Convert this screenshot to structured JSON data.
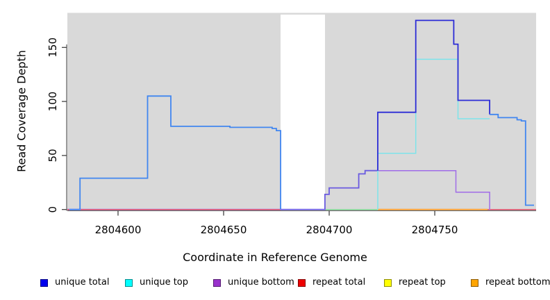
{
  "figure": {
    "xlabel": "Coordinate in Reference Genome",
    "ylabel": "Read Coverage Depth"
  },
  "chart_data": {
    "type": "line",
    "subtype": "step-coverage",
    "title": "",
    "xlabel": "Coordinate in Reference Genome",
    "ylabel": "Read Coverage Depth",
    "xlim": [
      2804576,
      2804798
    ],
    "ylim": [
      0,
      182
    ],
    "x_ticks": [
      2804600,
      2804650,
      2804700,
      2804750
    ],
    "y_ticks": [
      0,
      50,
      100,
      150
    ],
    "grid": false,
    "legend_position": "bottom",
    "background": {
      "panel_color": "#d9d9d9",
      "gap_color": "#ffffff",
      "repeat_gap_x": [
        2804677,
        2804698
      ]
    },
    "legend": [
      {
        "label": "unique total",
        "color": "#0000ee"
      },
      {
        "label": "unique top",
        "color": "#00ffff"
      },
      {
        "label": "unique bottom",
        "color": "#9932cc"
      },
      {
        "label": "repeat total",
        "color": "#ee0000"
      },
      {
        "label": "repeat top",
        "color": "#ffff00"
      },
      {
        "label": "repeat bottom",
        "color": "#ffa500"
      }
    ],
    "series": [
      {
        "name": "unique-bottom-zero-left",
        "color": "#b7a6ee",
        "width": 2.4,
        "points": [
          [
            2804576,
            0
          ],
          [
            2804677,
            0
          ]
        ]
      },
      {
        "name": "repeat-total",
        "color": "#dd4b66",
        "width": 1.5,
        "points": [
          [
            2804576,
            0
          ],
          [
            2804798,
            0
          ]
        ]
      },
      {
        "name": "top-strand-zero",
        "color": "#7fd693",
        "width": 1.5,
        "points": [
          [
            2804698,
            0
          ],
          [
            2804723,
            0
          ]
        ]
      },
      {
        "name": "repeat-bottom",
        "color": "#ff9f2e",
        "width": 1.8,
        "points": [
          [
            2804723,
            0
          ],
          [
            2804775,
            0
          ]
        ]
      },
      {
        "name": "unique-total-left",
        "color": "#4186f0",
        "width": 1.8,
        "points": [
          [
            2804577,
            0
          ],
          [
            2804582,
            0
          ],
          [
            2804582,
            29
          ],
          [
            2804614,
            29
          ],
          [
            2804614,
            105
          ],
          [
            2804625,
            105
          ],
          [
            2804625,
            77
          ],
          [
            2804653,
            77
          ],
          [
            2804653,
            76
          ],
          [
            2804673,
            76
          ],
          [
            2804673,
            75
          ],
          [
            2804675,
            75
          ],
          [
            2804675,
            73
          ],
          [
            2804677,
            73
          ],
          [
            2804677,
            0
          ]
        ]
      },
      {
        "name": "unique-total-gap",
        "color": "#6a5ae0",
        "width": 1.8,
        "points": [
          [
            2804677,
            0
          ],
          [
            2804698,
            0
          ],
          [
            2804698,
            14
          ],
          [
            2804700,
            14
          ],
          [
            2804700,
            20
          ],
          [
            2804714,
            20
          ],
          [
            2804714,
            33
          ],
          [
            2804717,
            33
          ],
          [
            2804717,
            36
          ],
          [
            2804723,
            36
          ]
        ]
      },
      {
        "name": "unique-bottom",
        "color": "#a06ce8",
        "width": 1.5,
        "points": [
          [
            2804723,
            36
          ],
          [
            2804760,
            36
          ],
          [
            2804760,
            16
          ],
          [
            2804776,
            16
          ],
          [
            2804776,
            0
          ]
        ]
      },
      {
        "name": "unique-top",
        "color": "#7de4ea",
        "width": 1.5,
        "points": [
          [
            2804723,
            0
          ],
          [
            2804723,
            52
          ],
          [
            2804741,
            52
          ],
          [
            2804741,
            139
          ],
          [
            2804761,
            139
          ],
          [
            2804761,
            84
          ],
          [
            2804776,
            84
          ]
        ]
      },
      {
        "name": "unique-total",
        "color": "#2b2bd6",
        "width": 1.8,
        "points": [
          [
            2804723,
            36
          ],
          [
            2804723,
            90
          ],
          [
            2804741,
            90
          ],
          [
            2804741,
            175
          ],
          [
            2804759,
            175
          ],
          [
            2804759,
            153
          ],
          [
            2804761,
            153
          ],
          [
            2804761,
            101
          ],
          [
            2804776,
            101
          ],
          [
            2804776,
            88
          ]
        ]
      },
      {
        "name": "unique-total-right",
        "color": "#4186f0",
        "width": 1.8,
        "points": [
          [
            2804776,
            88
          ],
          [
            2804780,
            88
          ],
          [
            2804780,
            85
          ],
          [
            2804789,
            85
          ],
          [
            2804789,
            83
          ],
          [
            2804791,
            83
          ],
          [
            2804791,
            82
          ],
          [
            2804793,
            82
          ],
          [
            2804793,
            4
          ],
          [
            2804797,
            4
          ]
        ]
      }
    ]
  }
}
